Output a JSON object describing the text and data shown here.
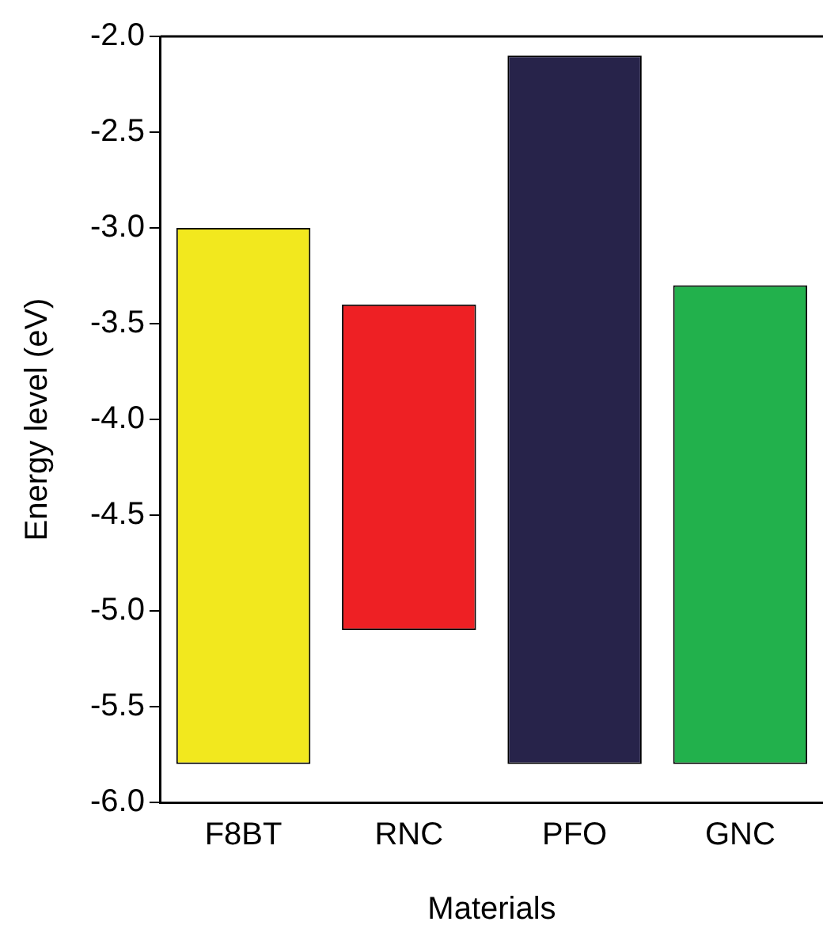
{
  "chart_data": {
    "type": "bar",
    "xlabel": "Materials",
    "ylabel": "Energy level (eV)",
    "categories": [
      "F8BT",
      "RNC",
      "PFO",
      "GNC"
    ],
    "values": [
      2.8,
      1.7,
      3.7,
      2.5
    ],
    "base": [
      -5.8,
      -5.1,
      -5.8,
      -5.8
    ],
    "colors": [
      "#f2e81e",
      "#ee2024",
      "#27234a",
      "#22b14c"
    ],
    "ylim": [
      -6.0,
      -2.0
    ],
    "yticks": [
      {
        "value": -6.0,
        "label": "-6.0"
      },
      {
        "value": -5.5,
        "label": "-5.5"
      },
      {
        "value": -5.0,
        "label": "-5.0"
      },
      {
        "value": -4.5,
        "label": "-4.5"
      },
      {
        "value": -4.0,
        "label": "-4.0"
      },
      {
        "value": -3.5,
        "label": "-3.5"
      },
      {
        "value": -3.0,
        "label": "-3.0"
      },
      {
        "value": -2.5,
        "label": "-2.5"
      },
      {
        "value": -2.0,
        "label": "-2.0"
      }
    ],
    "grid": false,
    "legend": false
  }
}
